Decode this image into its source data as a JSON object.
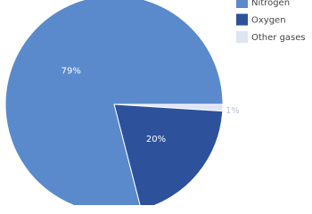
{
  "chart_data": {
    "type": "pie",
    "categories": [
      "Nitrogen",
      "Oxygen",
      "Other gases"
    ],
    "values": [
      79,
      20,
      1
    ],
    "value_labels": [
      "79%",
      "20%",
      "1%"
    ],
    "colors": [
      "#5a8acb",
      "#2d529b",
      "#dfe4f3"
    ],
    "legend": "top-right"
  }
}
